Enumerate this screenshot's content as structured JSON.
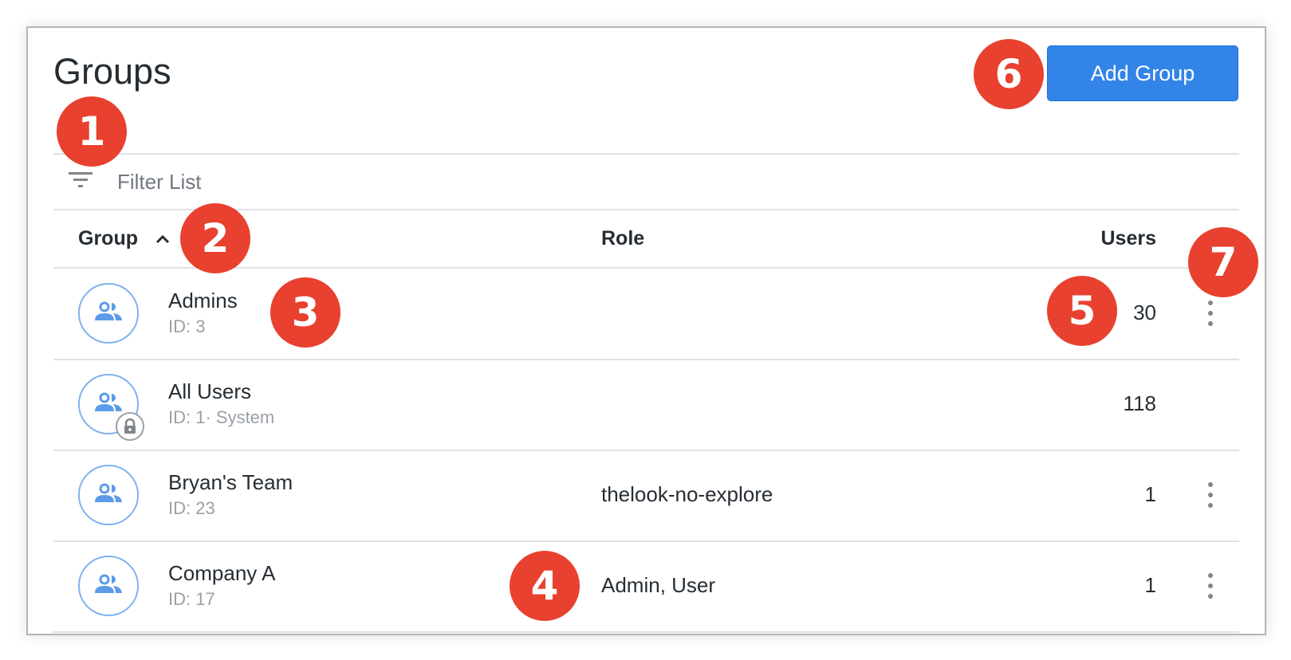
{
  "header": {
    "title": "Groups",
    "add_button": "Add Group"
  },
  "filter": {
    "placeholder": "Filter List",
    "icon": "filter-icon"
  },
  "table": {
    "columns": {
      "group": "Group",
      "role": "Role",
      "users": "Users"
    },
    "sort": {
      "column": "Group",
      "direction": "ascending"
    },
    "rows": [
      {
        "name": "Admins",
        "sub": "ID: 3",
        "role": "",
        "users": "30",
        "locked": false,
        "menu": true
      },
      {
        "name": "All Users",
        "sub": "ID: 1· System",
        "role": "",
        "users": "118",
        "locked": true,
        "menu": false
      },
      {
        "name": "Bryan's Team",
        "sub": "ID: 23",
        "role": "thelook-no-explore",
        "users": "1",
        "locked": false,
        "menu": true
      },
      {
        "name": "Company A",
        "sub": "ID: 17",
        "role": "Admin, User",
        "users": "1",
        "locked": false,
        "menu": true
      }
    ]
  },
  "annotations": [
    "1",
    "2",
    "3",
    "4",
    "5",
    "6",
    "7"
  ],
  "colors": {
    "accent": "#3284e8",
    "annotation": "#e8412f",
    "avatar": "#7fb1f0"
  }
}
